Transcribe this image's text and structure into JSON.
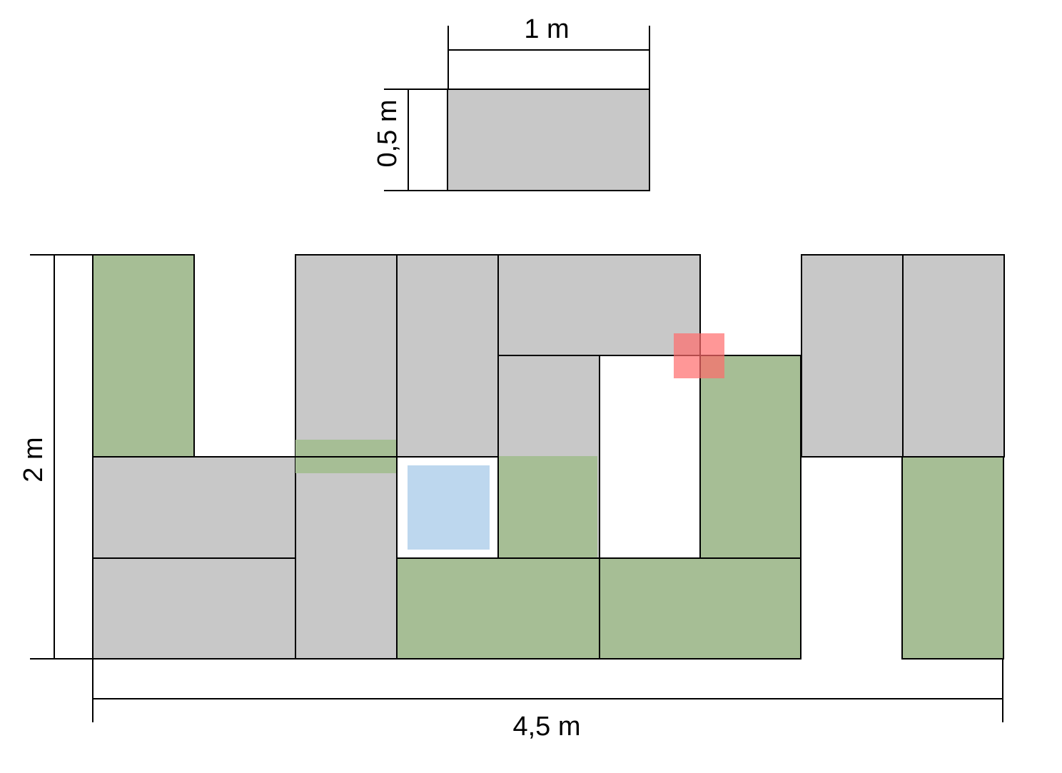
{
  "dimension_labels": {
    "tile_width": "1 m",
    "tile_height": "0,5 m",
    "floor_height": "2 m",
    "floor_width": "4,5 m"
  },
  "colors": {
    "gray_tile": "#c8c8c8",
    "green_tile": "#a6be95",
    "blue_square": "#bdd7ee",
    "red_marker": "#ff6b6b",
    "outline": "#000000",
    "background": "#ffffff"
  }
}
